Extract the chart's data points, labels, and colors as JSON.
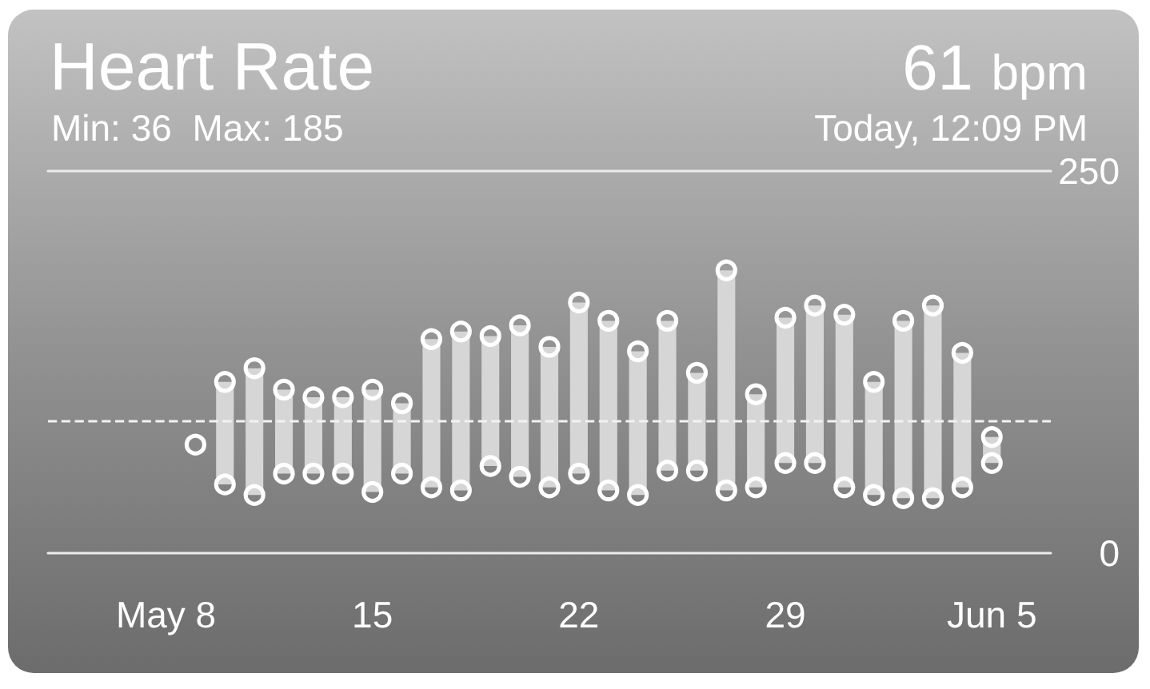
{
  "chart_data": {
    "type": "bar",
    "title": "Heart Rate",
    "subtitle": "Min: 36  Max: 185",
    "annotations": [
      "61 bpm",
      "Today, 12:09 PM"
    ],
    "x": [
      "--05-09",
      "--05-10",
      "--05-11",
      "--05-12",
      "--05-13",
      "--05-14",
      "--05-15",
      "--05-16",
      "--05-17",
      "--05-18",
      "--05-19",
      "--05-20",
      "--05-21",
      "--05-22",
      "--05-23",
      "--05-24",
      "--05-25",
      "--05-26",
      "--05-27",
      "--05-28",
      "--05-29",
      "--05-30",
      "--05-31",
      "--06-01",
      "--06-02",
      "--06-03",
      "--06-04",
      "--06-05"
    ],
    "series": [
      {
        "color": "#d6d6d6",
        "base": [
          null,
          45,
          38,
          52,
          52,
          52,
          40,
          52,
          43,
          41,
          57,
          50,
          43,
          52,
          41,
          38,
          54,
          54,
          41,
          43,
          59,
          59,
          43,
          38,
          36,
          36,
          43,
          59
        ],
        "values": [
          null,
          67,
          83,
          55,
          50,
          50,
          67,
          46,
          97,
          104,
          85,
          99,
          92,
          112,
          111,
          94,
          98,
          64,
          144,
          61,
          95,
          103,
          113,
          74,
          116,
          126,
          88,
          17
        ]
      },
      {
        "type": "scatter",
        "color": "#ffffff",
        "marker": "circle",
        "values": [
          71,
          45,
          38,
          52,
          52,
          52,
          40,
          52,
          43,
          41,
          57,
          50,
          43,
          52,
          41,
          38,
          54,
          54,
          41,
          43,
          59,
          59,
          43,
          38,
          36,
          36,
          43,
          59
        ]
      },
      {
        "type": "scatter",
        "color": "#ffffff",
        "marker": "circle",
        "values": [
          null,
          112,
          121,
          107,
          102,
          102,
          107,
          98,
          140,
          145,
          142,
          149,
          135,
          164,
          152,
          132,
          152,
          118,
          185,
          104,
          154,
          162,
          156,
          112,
          152,
          162,
          131,
          76
        ]
      }
    ],
    "xlim": [
      "--05-04",
      "--06-07"
    ],
    "xticks": [
      {
        "value": "--05-08",
        "label": "May 8"
      },
      {
        "value": "--05-15",
        "label": "15"
      },
      {
        "value": "--05-22",
        "label": "22"
      },
      {
        "value": "--05-29",
        "label": "29"
      },
      {
        "value": "--06-05",
        "label": "Jun 5"
      }
    ],
    "ylim": [
      0,
      250
    ],
    "yticks": [
      0,
      250
    ],
    "ref_lines": [
      {
        "axis": "y",
        "value": 87,
        "color": "#f2f2f2",
        "line_style": "dashed"
      }
    ]
  }
}
